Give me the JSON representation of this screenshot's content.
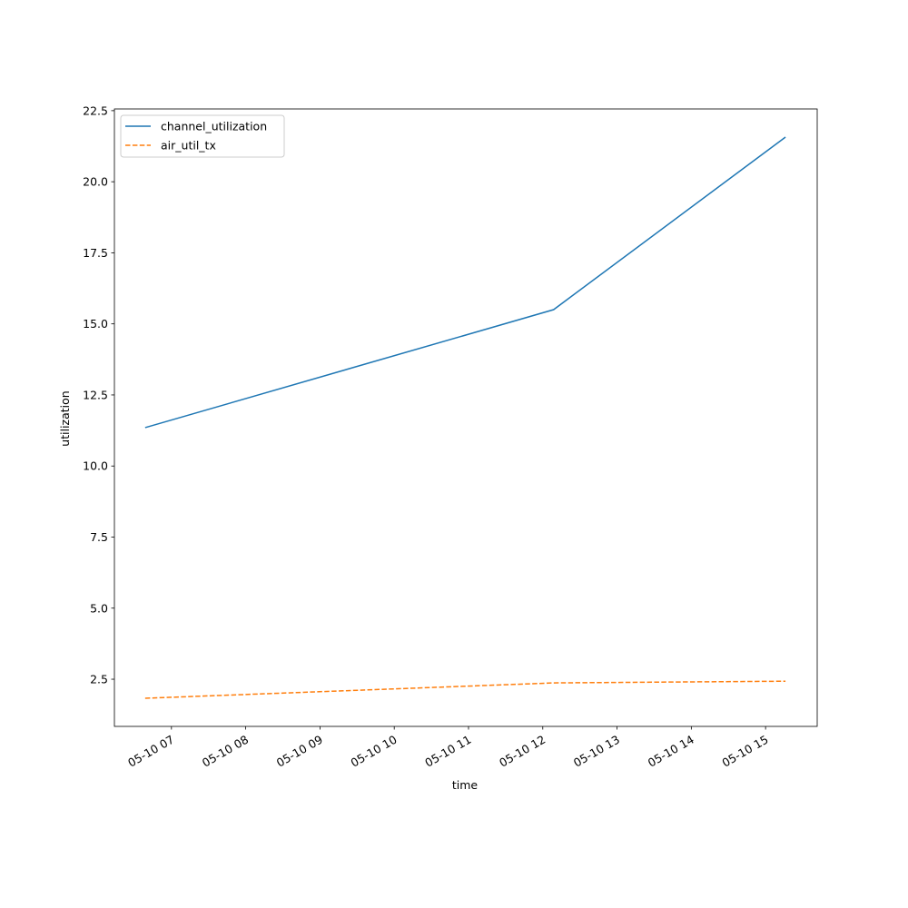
{
  "chart_data": {
    "type": "line",
    "x_label": "time",
    "y_label": "utilization",
    "x": [
      6.646,
      12.146,
      15.268
    ],
    "series": [
      {
        "name": "channel_utilization",
        "color": "#1f77b4",
        "linestyle": "solid",
        "values": [
          11.35,
          15.5,
          21.57
        ]
      },
      {
        "name": "air_util_tx",
        "color": "#ff7f0e",
        "linestyle": "dashed",
        "values": [
          1.83,
          2.37,
          2.43
        ]
      }
    ],
    "xlim": [
      6.232,
      15.695
    ],
    "xticks": [
      {
        "value": 7,
        "label": "05-10 07"
      },
      {
        "value": 8,
        "label": "05-10 08"
      },
      {
        "value": 9,
        "label": "05-10 09"
      },
      {
        "value": 10,
        "label": "05-10 10"
      },
      {
        "value": 11,
        "label": "05-10 11"
      },
      {
        "value": 12,
        "label": "05-10 12"
      },
      {
        "value": 13,
        "label": "05-10 13"
      },
      {
        "value": 14,
        "label": "05-10 14"
      },
      {
        "value": 15,
        "label": "05-10 15"
      }
    ],
    "ylim": [
      0.84,
      22.56
    ],
    "yticks": [
      2.5,
      {
        "value": 5,
        "label": "5.0"
      },
      7.5,
      {
        "value": 10,
        "label": "10.0"
      },
      12.5,
      {
        "value": 15,
        "label": "15.0"
      },
      17.5,
      {
        "value": 20,
        "label": "20.0"
      },
      22.5
    ],
    "grid": false,
    "legend": "upper left"
  }
}
